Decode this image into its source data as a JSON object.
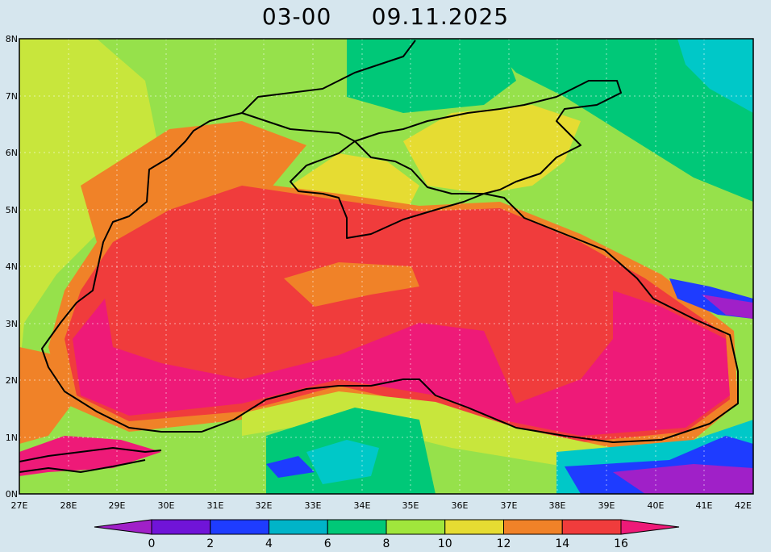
{
  "title": "03-00     09.11.2025",
  "axes": {
    "lat_ticks": [
      "8N",
      "7N",
      "6N",
      "5N",
      "4N",
      "3N",
      "2N",
      "1N",
      "0N"
    ],
    "lon_ticks": [
      "27E",
      "28E",
      "29E",
      "30E",
      "31E",
      "32E",
      "33E",
      "34E",
      "35E",
      "36E",
      "37E",
      "38E",
      "39E",
      "40E",
      "41E",
      "42E"
    ]
  },
  "colorbar": {
    "labels": [
      "0",
      "2",
      "4",
      "6",
      "8",
      "10",
      "12",
      "14",
      "16"
    ],
    "colors": [
      "#a020c8",
      "#7014d8",
      "#1e3cff",
      "#00b4c8",
      "#00c878",
      "#a0e63c",
      "#e6dc32",
      "#f08228",
      "#f03c3c",
      "#ee1a78"
    ]
  },
  "palette": {
    "c8": "#96e14b",
    "c10": "#c8e63c",
    "c12": "#e6dc32",
    "c14": "#f08228",
    "c16": "#f03c3c",
    "c18": "#ee1a78",
    "c6": "#00d28c",
    "c5": "#00c8c8",
    "c4": "#1e3cff",
    "c2": "#a020c8"
  }
}
